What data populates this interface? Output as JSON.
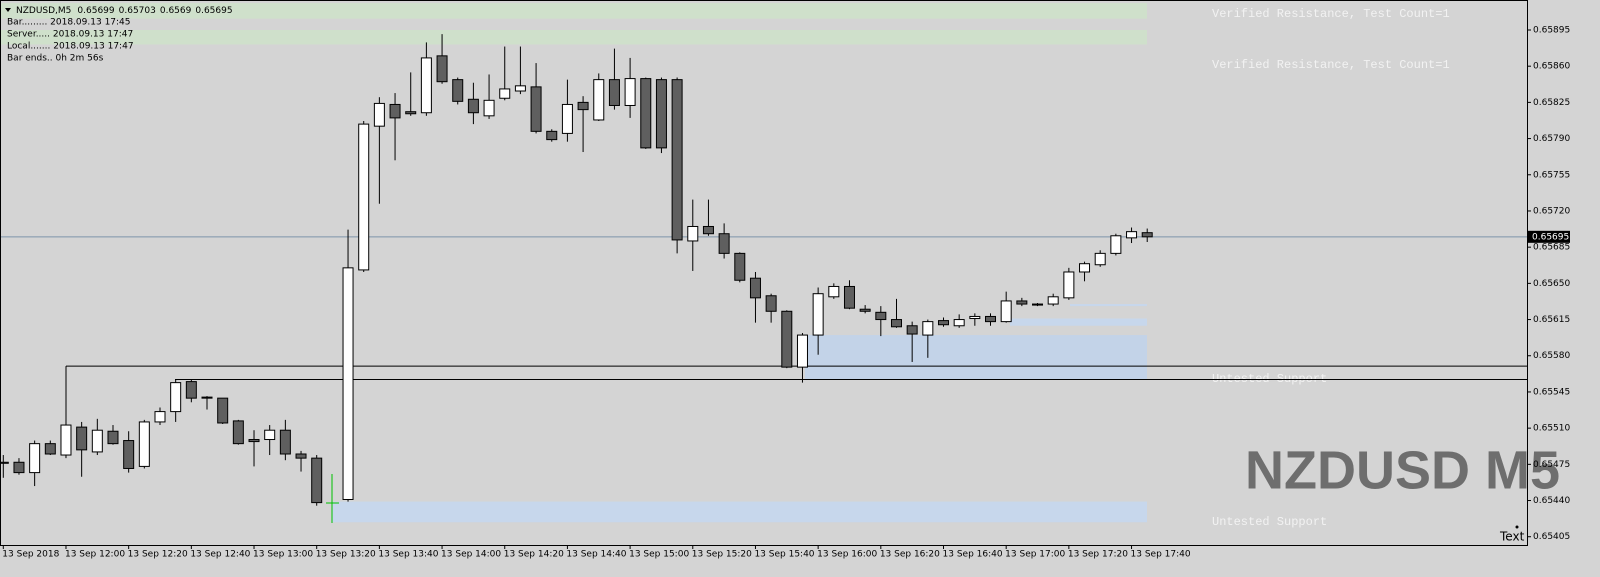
{
  "chart_data": {
    "type": "candlestick",
    "symbol": "NZDUSD,M5",
    "info": [
      "Bar......... 2018.09.13 17:45",
      "Server..... 2018.09.13 17:47",
      "Local....... 2018.09.13 17:47",
      "Bar ends.. 0h 2m 56s"
    ],
    "watermark": "NZDUSD M5",
    "corner_text": "Text",
    "categories": [
      "13 Sep 2018",
      null,
      null,
      null,
      "13 Sep 12:00",
      null,
      null,
      null,
      "13 Sep 12:20",
      null,
      null,
      null,
      "13 Sep 12:40",
      null,
      null,
      null,
      "13 Sep 13:00",
      null,
      null,
      null,
      "13 Sep 13:20",
      null,
      null,
      null,
      "13 Sep 13:40",
      null,
      null,
      null,
      "13 Sep 14:00",
      null,
      null,
      null,
      "13 Sep 14:20",
      null,
      null,
      null,
      "13 Sep 14:40",
      null,
      null,
      null,
      "13 Sep 15:00",
      null,
      null,
      null,
      "13 Sep 15:20",
      null,
      null,
      null,
      "13 Sep 15:40",
      null,
      null,
      null,
      "13 Sep 16:00",
      null,
      null,
      null,
      "13 Sep 16:20",
      null,
      null,
      null,
      "13 Sep 16:40",
      null,
      null,
      null,
      "13 Sep 17:00",
      null,
      null,
      null,
      "13 Sep 17:20",
      null,
      null,
      null,
      "13 Sep 17:40",
      null
    ],
    "open": [
      0.65476,
      0.65477,
      0.65467,
      0.65495,
      0.65484,
      0.65511,
      0.65487,
      0.65507,
      0.65498,
      0.65473,
      0.65516,
      0.65526,
      0.65555,
      0.6554,
      0.65539,
      0.65517,
      0.65499,
      0.65499,
      0.65508,
      0.65485,
      0.65481,
      null,
      0.65441,
      0.65663,
      0.65802,
      0.65823,
      0.65816,
      0.65815,
      0.6587,
      0.65847,
      0.65828,
      0.65812,
      0.65829,
      0.65836,
      0.6584,
      0.65797,
      0.65795,
      0.65825,
      0.65808,
      0.65847,
      0.65822,
      0.65848,
      0.65847,
      0.65847,
      0.65691,
      0.65705,
      0.65698,
      0.65679,
      0.65655,
      0.65638,
      0.65623,
      0.65569,
      0.656,
      0.65637,
      0.65647,
      0.65625,
      0.65622,
      0.65615,
      0.65609,
      0.656,
      0.65614,
      0.65609,
      0.65616,
      0.65618,
      0.65613,
      0.65633,
      0.6563,
      0.6563,
      0.65636,
      0.65661,
      0.65668,
      0.65679,
      0.65694,
      0.65699
    ],
    "high": [
      0.65484,
      0.65481,
      0.65498,
      0.65498,
      0.65518,
      0.65516,
      0.65519,
      0.65513,
      0.65507,
      0.65518,
      0.6553,
      0.65557,
      0.65557,
      0.65541,
      0.65539,
      0.65518,
      0.65508,
      0.65513,
      0.65518,
      0.65488,
      0.65484,
      null,
      0.65702,
      0.65807,
      0.6583,
      0.65834,
      0.65854,
      0.65883,
      0.65891,
      0.65849,
      0.65844,
      0.65852,
      0.65879,
      0.65879,
      0.65863,
      0.65799,
      0.65847,
      0.65831,
      0.65853,
      0.65877,
      0.65868,
      0.65849,
      0.65849,
      0.65849,
      0.65731,
      0.65731,
      0.65708,
      0.6568,
      0.65661,
      0.6564,
      0.65624,
      0.65602,
      0.65646,
      0.6565,
      0.65653,
      0.65629,
      0.65628,
      0.65635,
      0.65613,
      0.65615,
      0.65617,
      0.6562,
      0.65621,
      0.65621,
      0.65642,
      0.65636,
      0.65631,
      0.6564,
      0.65665,
      0.65671,
      0.65682,
      0.65698,
      0.65704,
      0.65703
    ],
    "low": [
      0.65462,
      0.65465,
      0.65454,
      0.65484,
      0.65481,
      0.65463,
      0.65484,
      0.65494,
      0.65467,
      0.65471,
      0.65513,
      0.65516,
      0.65535,
      0.65528,
      0.65514,
      0.65494,
      0.65473,
      0.65484,
      0.65479,
      0.65468,
      0.65435,
      null,
      0.65439,
      0.65661,
      0.65727,
      0.65769,
      0.65812,
      0.65812,
      0.65843,
      0.65823,
      0.65804,
      0.65809,
      0.65827,
      0.65833,
      0.65795,
      0.65787,
      0.65787,
      0.65777,
      0.65807,
      0.65818,
      0.6581,
      0.6578,
      0.65776,
      0.65679,
      0.65662,
      0.65696,
      0.65674,
      0.65651,
      0.65612,
      0.65612,
      0.65568,
      0.65554,
      0.65581,
      0.65635,
      0.65625,
      0.65621,
      0.65599,
      0.65607,
      0.65574,
      0.65578,
      0.65608,
      0.65607,
      0.65609,
      0.65609,
      0.65612,
      0.65628,
      0.65628,
      0.65628,
      0.65634,
      0.65652,
      0.65666,
      0.65677,
      0.65689,
      0.6569
    ],
    "close": [
      0.65477,
      0.65467,
      0.65495,
      0.65485,
      0.65513,
      0.65489,
      0.65508,
      0.65495,
      0.65471,
      0.65516,
      0.65526,
      0.65554,
      0.65539,
      0.65539,
      0.65515,
      0.65495,
      0.65497,
      0.65508,
      0.65485,
      0.65481,
      0.65438,
      null,
      0.65665,
      0.65804,
      0.65824,
      0.6581,
      0.65814,
      0.65868,
      0.65845,
      0.65826,
      0.65815,
      0.65827,
      0.65838,
      0.65841,
      0.65797,
      0.65789,
      0.65823,
      0.65818,
      0.65847,
      0.65822,
      0.65848,
      0.65781,
      0.65781,
      0.65692,
      0.65705,
      0.65698,
      0.65679,
      0.65653,
      0.65636,
      0.65623,
      0.65569,
      0.656,
      0.6564,
      0.65647,
      0.65626,
      0.65623,
      0.65615,
      0.65608,
      0.65601,
      0.65613,
      0.6561,
      0.65615,
      0.65618,
      0.65613,
      0.65633,
      0.6563,
      0.65629,
      0.65637,
      0.65661,
      0.65669,
      0.65679,
      0.65696,
      0.657,
      0.65695
    ],
    "bull_color": "#ffffff",
    "bear_color": "#5f5f5f",
    "bid_color": "#7d93aa",
    "zones": [
      {
        "label": "Verified Resistance, Test Count=1",
        "low": 0.65906,
        "high": 0.65921,
        "color": "#cfe0cb"
      },
      {
        "label": "Verified Resistance, Test Count=1",
        "low": 0.65881,
        "high": 0.65895,
        "color": "#cfe0cb"
      },
      {
        "label": "Untested Support",
        "low": 0.65557,
        "high": 0.656,
        "color": "#c3d3e8"
      },
      {
        "label": "Untested Support",
        "low": 0.65419,
        "high": 0.65439,
        "color": "#c7d7ec"
      },
      {
        "low": 0.65609,
        "high": 0.65616,
        "color": "#c7d7ec"
      },
      {
        "low": 0.65628,
        "high": 0.6563,
        "color": "#c7d7ec"
      }
    ],
    "levels": [
      0.6557,
      0.65557
    ],
    "ylim": [
      0.65397,
      0.65924
    ],
    "yticks": [
      0.65895,
      {
        "value": 0.6586,
        "label": "0.65860"
      },
      0.65825,
      {
        "value": 0.6579,
        "label": "0.65790"
      },
      0.65755,
      {
        "value": 0.6572,
        "label": "0.65720"
      },
      0.65685,
      {
        "value": 0.6565,
        "label": "0.65650"
      },
      0.65615,
      {
        "value": 0.6558,
        "label": "0.65580"
      },
      0.65545,
      {
        "value": 0.6551,
        "label": "0.65510"
      },
      0.65475,
      {
        "value": 0.6544,
        "label": "0.65440"
      },
      0.65405
    ]
  }
}
